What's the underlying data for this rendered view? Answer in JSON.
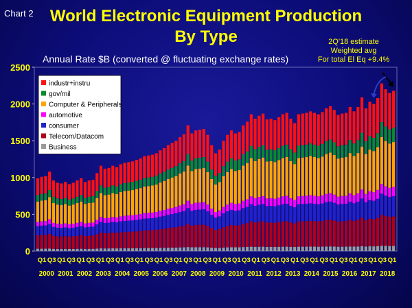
{
  "header": {
    "chart_label": "Chart 2",
    "title_line1": "World Electronic Equipment Production",
    "title_line2": "By Type",
    "subtitle": "Annual Rate $B (converted @ fluctuating exchange rates)",
    "note_line1": "2Q'18 estimate",
    "note_line2": "Weighted avg",
    "note_line3": "For total El Eq +9.4%"
  },
  "colors": {
    "Business": "#9a9a9a",
    "Telecom/Datacom": "#b0001a",
    "consumer": "#2222cc",
    "automotive": "#ff00ff",
    "Computer & Peripherals": "#ffa500",
    "gov/mil": "#0a8a2a",
    "industr+instru": "#ff1111",
    "axis_text": "#ffff00",
    "tick_text": "#ffffff"
  },
  "chart_data": {
    "type": "bar",
    "stacked": true,
    "title": "World Electronic Equipment Production By Type",
    "ylabel": "Annual Rate $B (converted @ fluctuating exchange rates)",
    "xlabel": "",
    "ylim": [
      0,
      2500
    ],
    "yticks": [
      0,
      500,
      1000,
      1500,
      2000,
      2500
    ],
    "years": [
      "2000",
      "2001",
      "2002",
      "2003",
      "2004",
      "2005",
      "2006",
      "2007",
      "2008",
      "2009",
      "2010",
      "2011",
      "2012",
      "2013",
      "2014",
      "2015",
      "2016",
      "2017",
      "2018"
    ],
    "quarter_labels": [
      "Q1",
      "Q3",
      "Q1",
      "Q3",
      "Q1",
      "Q3",
      "Q1",
      "Q3",
      "Q1",
      "Q3",
      "Q1",
      "Q3",
      "Q1",
      "Q3",
      "Q1",
      "Q3",
      "Q1",
      "Q3",
      "Q1",
      "Q3",
      "Q1",
      "Q3",
      "Q1",
      "Q3",
      "Q1",
      "Q3",
      "Q1",
      "Q3",
      "Q1",
      "Q3",
      "Q1",
      "Q3",
      "Q1",
      "Q3",
      "Q1",
      "Q3",
      "Q1"
    ],
    "legend": [
      "industr+instru",
      "gov/mil",
      "Computer & Peripherals",
      "automotive",
      "consumer",
      "Telecom/Datacom",
      "Business"
    ],
    "legend_position": "top-left",
    "annotations": [
      "2Q'18 estimate",
      "Weighted avg",
      "For total El Eq +9.4%"
    ],
    "series_order_bottom_to_top": [
      "Business",
      "Telecom/Datacom",
      "consumer",
      "automotive",
      "Computer & Peripherals",
      "gov/mil",
      "industr+instru"
    ],
    "shares": {
      "Business": 0.032,
      "Telecom/Datacom": 0.185,
      "consumer": 0.125,
      "automotive": 0.058,
      "Computer & Peripherals": 0.28,
      "gov/mil": 0.09,
      "industr+instru": 0.23
    },
    "totals": [
      990,
      1010,
      1020,
      1080,
      960,
      930,
      920,
      940,
      910,
      930,
      960,
      990,
      940,
      960,
      970,
      1060,
      1160,
      1120,
      1130,
      1160,
      1140,
      1180,
      1200,
      1210,
      1220,
      1240,
      1260,
      1290,
      1300,
      1310,
      1330,
      1370,
      1400,
      1440,
      1470,
      1500,
      1550,
      1590,
      1710,
      1600,
      1640,
      1650,
      1660,
      1580,
      1440,
      1330,
      1380,
      1500,
      1580,
      1640,
      1600,
      1620,
      1710,
      1760,
      1860,
      1800,
      1840,
      1870,
      1790,
      1800,
      1780,
      1820,
      1860,
      1880,
      1800,
      1740,
      1860,
      1870,
      1880,
      1900,
      1880,
      1860,
      1890,
      1940,
      1970,
      1920,
      1850,
      1870,
      1880,
      1960,
      1900,
      1960,
      2090,
      1940,
      2030,
      2000,
      2080,
      2280,
      2200,
      2150,
      2180
    ]
  }
}
